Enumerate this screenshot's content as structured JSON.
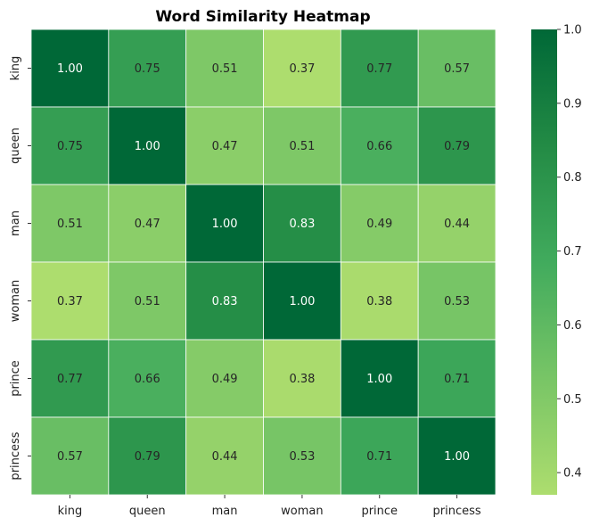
{
  "chart_data": {
    "type": "heatmap",
    "title": "Word Similarity Heatmap",
    "xlabel": "",
    "ylabel": "",
    "x_categories": [
      "king",
      "queen",
      "man",
      "woman",
      "prince",
      "princess"
    ],
    "y_categories": [
      "king",
      "queen",
      "man",
      "woman",
      "prince",
      "princess"
    ],
    "values": [
      [
        1.0,
        0.75,
        0.51,
        0.37,
        0.77,
        0.57
      ],
      [
        0.75,
        1.0,
        0.47,
        0.51,
        0.66,
        0.79
      ],
      [
        0.51,
        0.47,
        1.0,
        0.83,
        0.49,
        0.44
      ],
      [
        0.37,
        0.51,
        0.83,
        1.0,
        0.38,
        0.53
      ],
      [
        0.77,
        0.66,
        0.49,
        0.38,
        1.0,
        0.71
      ],
      [
        0.57,
        0.79,
        0.44,
        0.53,
        0.71,
        1.0
      ]
    ],
    "value_format": "0.00",
    "colorbar": {
      "min": 0.37,
      "max": 1.0,
      "ticks": [
        0.4,
        0.5,
        0.6,
        0.7,
        0.8,
        0.9,
        1.0
      ],
      "tick_labels": [
        "0.4",
        "0.5",
        "0.6",
        "0.7",
        "0.8",
        "0.9",
        "1.0"
      ],
      "colormap_stops": [
        "#addd6e",
        "#78c566",
        "#41ab5d",
        "#238b45",
        "#006837"
      ]
    },
    "grid_lines": true,
    "grid_line_color": "#ffffff"
  }
}
